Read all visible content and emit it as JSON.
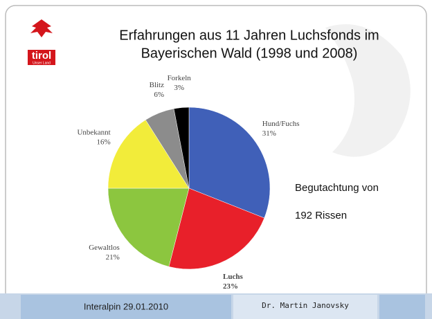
{
  "slide": {
    "logo": {
      "text": "tirol",
      "subtext": "Unser Land"
    },
    "title_lines": [
      "Erfahrungen aus 11 Jahren Luchsfonds im",
      "Bayerischen Wald (1998 und 2008)"
    ],
    "note_lines": [
      "Begutachtung von",
      "192 Rissen"
    ],
    "footer": {
      "left": "Interalpin 29.01.2010",
      "center": "Dr. Martin Janovsky"
    }
  },
  "chart_data": {
    "type": "pie",
    "categories": [
      "Hund/Fuchs",
      "Luchs",
      "Gewaltlos",
      "Unbekannt",
      "Blitz",
      "Forkeln"
    ],
    "values": [
      31,
      23,
      21,
      16,
      6,
      3
    ],
    "value_labels": [
      "31%",
      "23%",
      "21%",
      "16%",
      "6%",
      "3%"
    ],
    "colors": [
      "#4060b8",
      "#e8202a",
      "#8cc63f",
      "#f2ec3a",
      "#8c8c8c",
      "#000000"
    ]
  }
}
